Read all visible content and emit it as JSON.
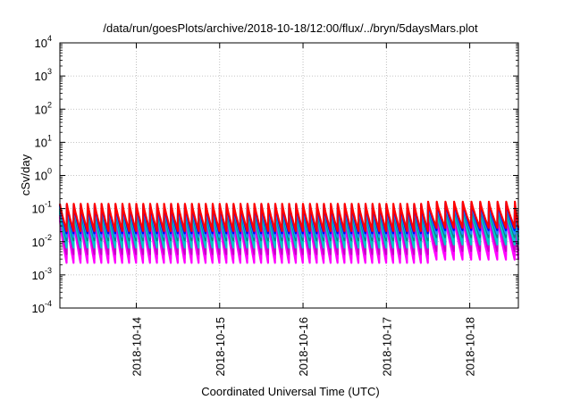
{
  "chart_data": {
    "type": "line",
    "title": "/data/run/goesPlots/archive/2018-10-18/12:00/flux/../bryn/5daysMars.plot",
    "xlabel": "Coordinated Universal Time (UTC)",
    "ylabel": "cSv/day",
    "y_scale": "log",
    "ylim": [
      0.0001,
      10000
    ],
    "y_ticks": [
      {
        "value": 0.0001,
        "base": "10",
        "exp": "-4"
      },
      {
        "value": 0.001,
        "base": "10",
        "exp": "-3"
      },
      {
        "value": 0.01,
        "base": "10",
        "exp": "-2"
      },
      {
        "value": 0.1,
        "base": "10",
        "exp": "-1"
      },
      {
        "value": 1,
        "base": "10",
        "exp": "0"
      },
      {
        "value": 10,
        "base": "10",
        "exp": "1"
      },
      {
        "value": 100,
        "base": "10",
        "exp": "2"
      },
      {
        "value": 1000,
        "base": "10",
        "exp": "3"
      },
      {
        "value": 10000,
        "base": "10",
        "exp": "4"
      }
    ],
    "xlim": [
      "2018-10-13T02:00",
      "2018-10-18T14:00"
    ],
    "x_ticks": [
      "2018-10-14",
      "2018-10-15",
      "2018-10-16",
      "2018-10-17",
      "2018-10-18"
    ],
    "grid": true,
    "legend": "none",
    "pattern": {
      "orbit_period_hours": 2.0,
      "first_peak": "2018-10-13T02:00",
      "shift_at": "2018-10-17T12:00",
      "period_after_shift_hours": 2.5
    },
    "series": [
      {
        "color": "#ff00ff",
        "peak": 0.045,
        "trough": 0.0023
      },
      {
        "color": "#ff00ff",
        "peak": 0.055,
        "trough": 0.0031
      },
      {
        "color": "#c800c8",
        "peak": 0.065,
        "trough": 0.0042
      },
      {
        "color": "#00c8c8",
        "peak": 0.075,
        "trough": 0.0066
      },
      {
        "color": "#00c8c8",
        "peak": 0.085,
        "trough": 0.0088
      },
      {
        "color": "#008b8b",
        "peak": 0.1,
        "trough": 0.011
      },
      {
        "color": "#1f8fff",
        "peak": 0.115,
        "trough": 0.014
      },
      {
        "color": "#0000ff",
        "peak": 0.13,
        "trough": 0.018
      },
      {
        "color": "#ff0000",
        "peak": 0.14,
        "trough": 0.021
      }
    ]
  }
}
